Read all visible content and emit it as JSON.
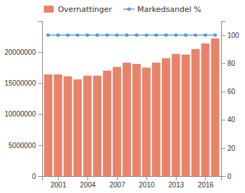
{
  "chart_data": {
    "type": "bar",
    "x": [
      2000,
      2001,
      2002,
      2003,
      2004,
      2005,
      2006,
      2007,
      2008,
      2009,
      2010,
      2011,
      2012,
      2013,
      2014,
      2015,
      2016,
      2017
    ],
    "series": [
      {
        "name": "Overnattinger",
        "type": "bar",
        "color": "#e8836a",
        "values": [
          16400000,
          16400000,
          16100000,
          15600000,
          16200000,
          16200000,
          17000000,
          17600000,
          18300000,
          18100000,
          17500000,
          18300000,
          19000000,
          19700000,
          19600000,
          20500000,
          21400000,
          22200000
        ]
      },
      {
        "name": "Markedsandel %",
        "type": "line",
        "color": "#5b9bd5",
        "marker": "circle",
        "axis": "y2",
        "values": [
          100,
          100,
          100,
          100,
          100,
          100,
          100,
          100,
          100,
          100,
          100,
          100,
          100,
          100,
          100,
          100,
          100,
          100
        ]
      }
    ],
    "xlim": [
      1999.4,
      2017.6
    ],
    "xticks": [
      2001,
      2004,
      2007,
      2010,
      2013,
      2016
    ],
    "ylim": [
      0,
      25000000
    ],
    "yticks": [
      0,
      5000000,
      10000000,
      15000000,
      20000000
    ],
    "y2lim": [
      0,
      110
    ],
    "y2ticks": [
      0,
      20,
      40,
      60,
      80,
      100
    ],
    "grid": false,
    "legend": "top"
  }
}
